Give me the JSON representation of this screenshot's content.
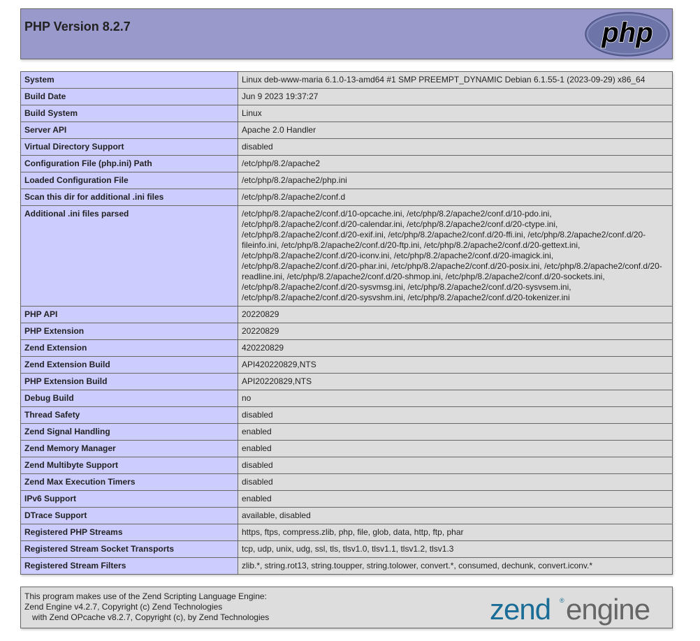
{
  "header": {
    "title": "PHP Version 8.2.7",
    "logo_text": "php",
    "logo_color": "#6c74a8"
  },
  "rows": [
    {
      "label": "System",
      "value": "Linux deb-www-maria 6.1.0-13-amd64 #1 SMP PREEMPT_DYNAMIC Debian 6.1.55-1 (2023-09-29) x86_64"
    },
    {
      "label": "Build Date",
      "value": "Jun 9 2023 19:37:27"
    },
    {
      "label": "Build System",
      "value": "Linux"
    },
    {
      "label": "Server API",
      "value": "Apache 2.0 Handler"
    },
    {
      "label": "Virtual Directory Support",
      "value": "disabled"
    },
    {
      "label": "Configuration File (php.ini) Path",
      "value": "/etc/php/8.2/apache2"
    },
    {
      "label": "Loaded Configuration File",
      "value": "/etc/php/8.2/apache2/php.ini"
    },
    {
      "label": "Scan this dir for additional .ini files",
      "value": "/etc/php/8.2/apache2/conf.d"
    },
    {
      "label": "Additional .ini files parsed",
      "value": "/etc/php/8.2/apache2/conf.d/10-opcache.ini, /etc/php/8.2/apache2/conf.d/10-pdo.ini, /etc/php/8.2/apache2/conf.d/20-calendar.ini, /etc/php/8.2/apache2/conf.d/20-ctype.ini, /etc/php/8.2/apache2/conf.d/20-exif.ini, /etc/php/8.2/apache2/conf.d/20-ffi.ini, /etc/php/8.2/apache2/conf.d/20-fileinfo.ini, /etc/php/8.2/apache2/conf.d/20-ftp.ini, /etc/php/8.2/apache2/conf.d/20-gettext.ini, /etc/php/8.2/apache2/conf.d/20-iconv.ini, /etc/php/8.2/apache2/conf.d/20-imagick.ini, /etc/php/8.2/apache2/conf.d/20-phar.ini, /etc/php/8.2/apache2/conf.d/20-posix.ini, /etc/php/8.2/apache2/conf.d/20-readline.ini, /etc/php/8.2/apache2/conf.d/20-shmop.ini, /etc/php/8.2/apache2/conf.d/20-sockets.ini, /etc/php/8.2/apache2/conf.d/20-sysvmsg.ini, /etc/php/8.2/apache2/conf.d/20-sysvsem.ini, /etc/php/8.2/apache2/conf.d/20-sysvshm.ini, /etc/php/8.2/apache2/conf.d/20-tokenizer.ini"
    },
    {
      "label": "PHP API",
      "value": "20220829"
    },
    {
      "label": "PHP Extension",
      "value": "20220829"
    },
    {
      "label": "Zend Extension",
      "value": "420220829"
    },
    {
      "label": "Zend Extension Build",
      "value": "API420220829,NTS"
    },
    {
      "label": "PHP Extension Build",
      "value": "API20220829,NTS"
    },
    {
      "label": "Debug Build",
      "value": "no"
    },
    {
      "label": "Thread Safety",
      "value": "disabled"
    },
    {
      "label": "Zend Signal Handling",
      "value": "enabled"
    },
    {
      "label": "Zend Memory Manager",
      "value": "enabled"
    },
    {
      "label": "Zend Multibyte Support",
      "value": "disabled"
    },
    {
      "label": "Zend Max Execution Timers",
      "value": "disabled"
    },
    {
      "label": "IPv6 Support",
      "value": "enabled"
    },
    {
      "label": "DTrace Support",
      "value": "available, disabled"
    },
    {
      "label": "Registered PHP Streams",
      "value": "https, ftps, compress.zlib, php, file, glob, data, http, ftp, phar"
    },
    {
      "label": "Registered Stream Socket Transports",
      "value": "tcp, udp, unix, udg, ssl, tls, tlsv1.0, tlsv1.1, tlsv1.2, tlsv1.3"
    },
    {
      "label": "Registered Stream Filters",
      "value": "zlib.*, string.rot13, string.toupper, string.tolower, convert.*, consumed, dechunk, convert.iconv.*"
    }
  ],
  "footer": {
    "line1": "This program makes use of the Zend Scripting Language Engine:",
    "line2": "Zend Engine v4.2.7, Copyright (c) Zend Technologies",
    "line3": "with Zend OPcache v8.2.7, Copyright (c), by Zend Technologies",
    "logo_text": "zend®engine",
    "logo_color": "#1a6d96"
  }
}
